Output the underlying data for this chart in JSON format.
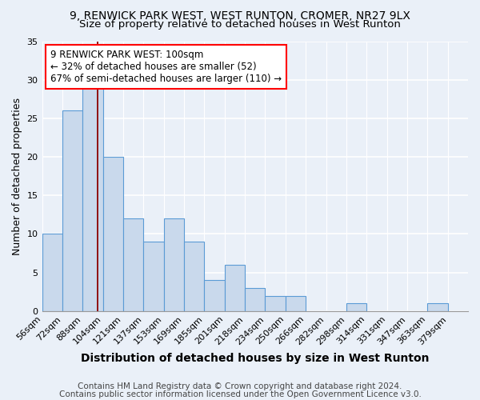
{
  "title1": "9, RENWICK PARK WEST, WEST RUNTON, CROMER, NR27 9LX",
  "title2": "Size of property relative to detached houses in West Runton",
  "xlabel": "Distribution of detached houses by size in West Runton",
  "ylabel": "Number of detached properties",
  "bin_labels": [
    "56sqm",
    "72sqm",
    "88sqm",
    "104sqm",
    "121sqm",
    "137sqm",
    "153sqm",
    "169sqm",
    "185sqm",
    "201sqm",
    "218sqm",
    "234sqm",
    "250sqm",
    "266sqm",
    "282sqm",
    "298sqm",
    "314sqm",
    "331sqm",
    "347sqm",
    "363sqm",
    "379sqm"
  ],
  "bar_values": [
    10,
    26,
    29,
    20,
    12,
    9,
    12,
    9,
    4,
    6,
    3,
    2,
    2,
    0,
    0,
    1,
    0,
    0,
    0,
    1,
    0
  ],
  "bar_color": "#c9d9ec",
  "bar_edge_color": "#5b9bd5",
  "annotation_text": "9 RENWICK PARK WEST: 100sqm\n← 32% of detached houses are smaller (52)\n67% of semi-detached houses are larger (110) →",
  "ylim": [
    0,
    35
  ],
  "yticks": [
    0,
    5,
    10,
    15,
    20,
    25,
    30,
    35
  ],
  "footer1": "Contains HM Land Registry data © Crown copyright and database right 2024.",
  "footer2": "Contains public sector information licensed under the Open Government Licence v3.0.",
  "bg_color": "#eaf0f8",
  "title1_fontsize": 10,
  "title2_fontsize": 9.5,
  "xlabel_fontsize": 10,
  "ylabel_fontsize": 9,
  "tick_fontsize": 8,
  "footer_fontsize": 7.5,
  "annotation_fontsize": 8.5
}
